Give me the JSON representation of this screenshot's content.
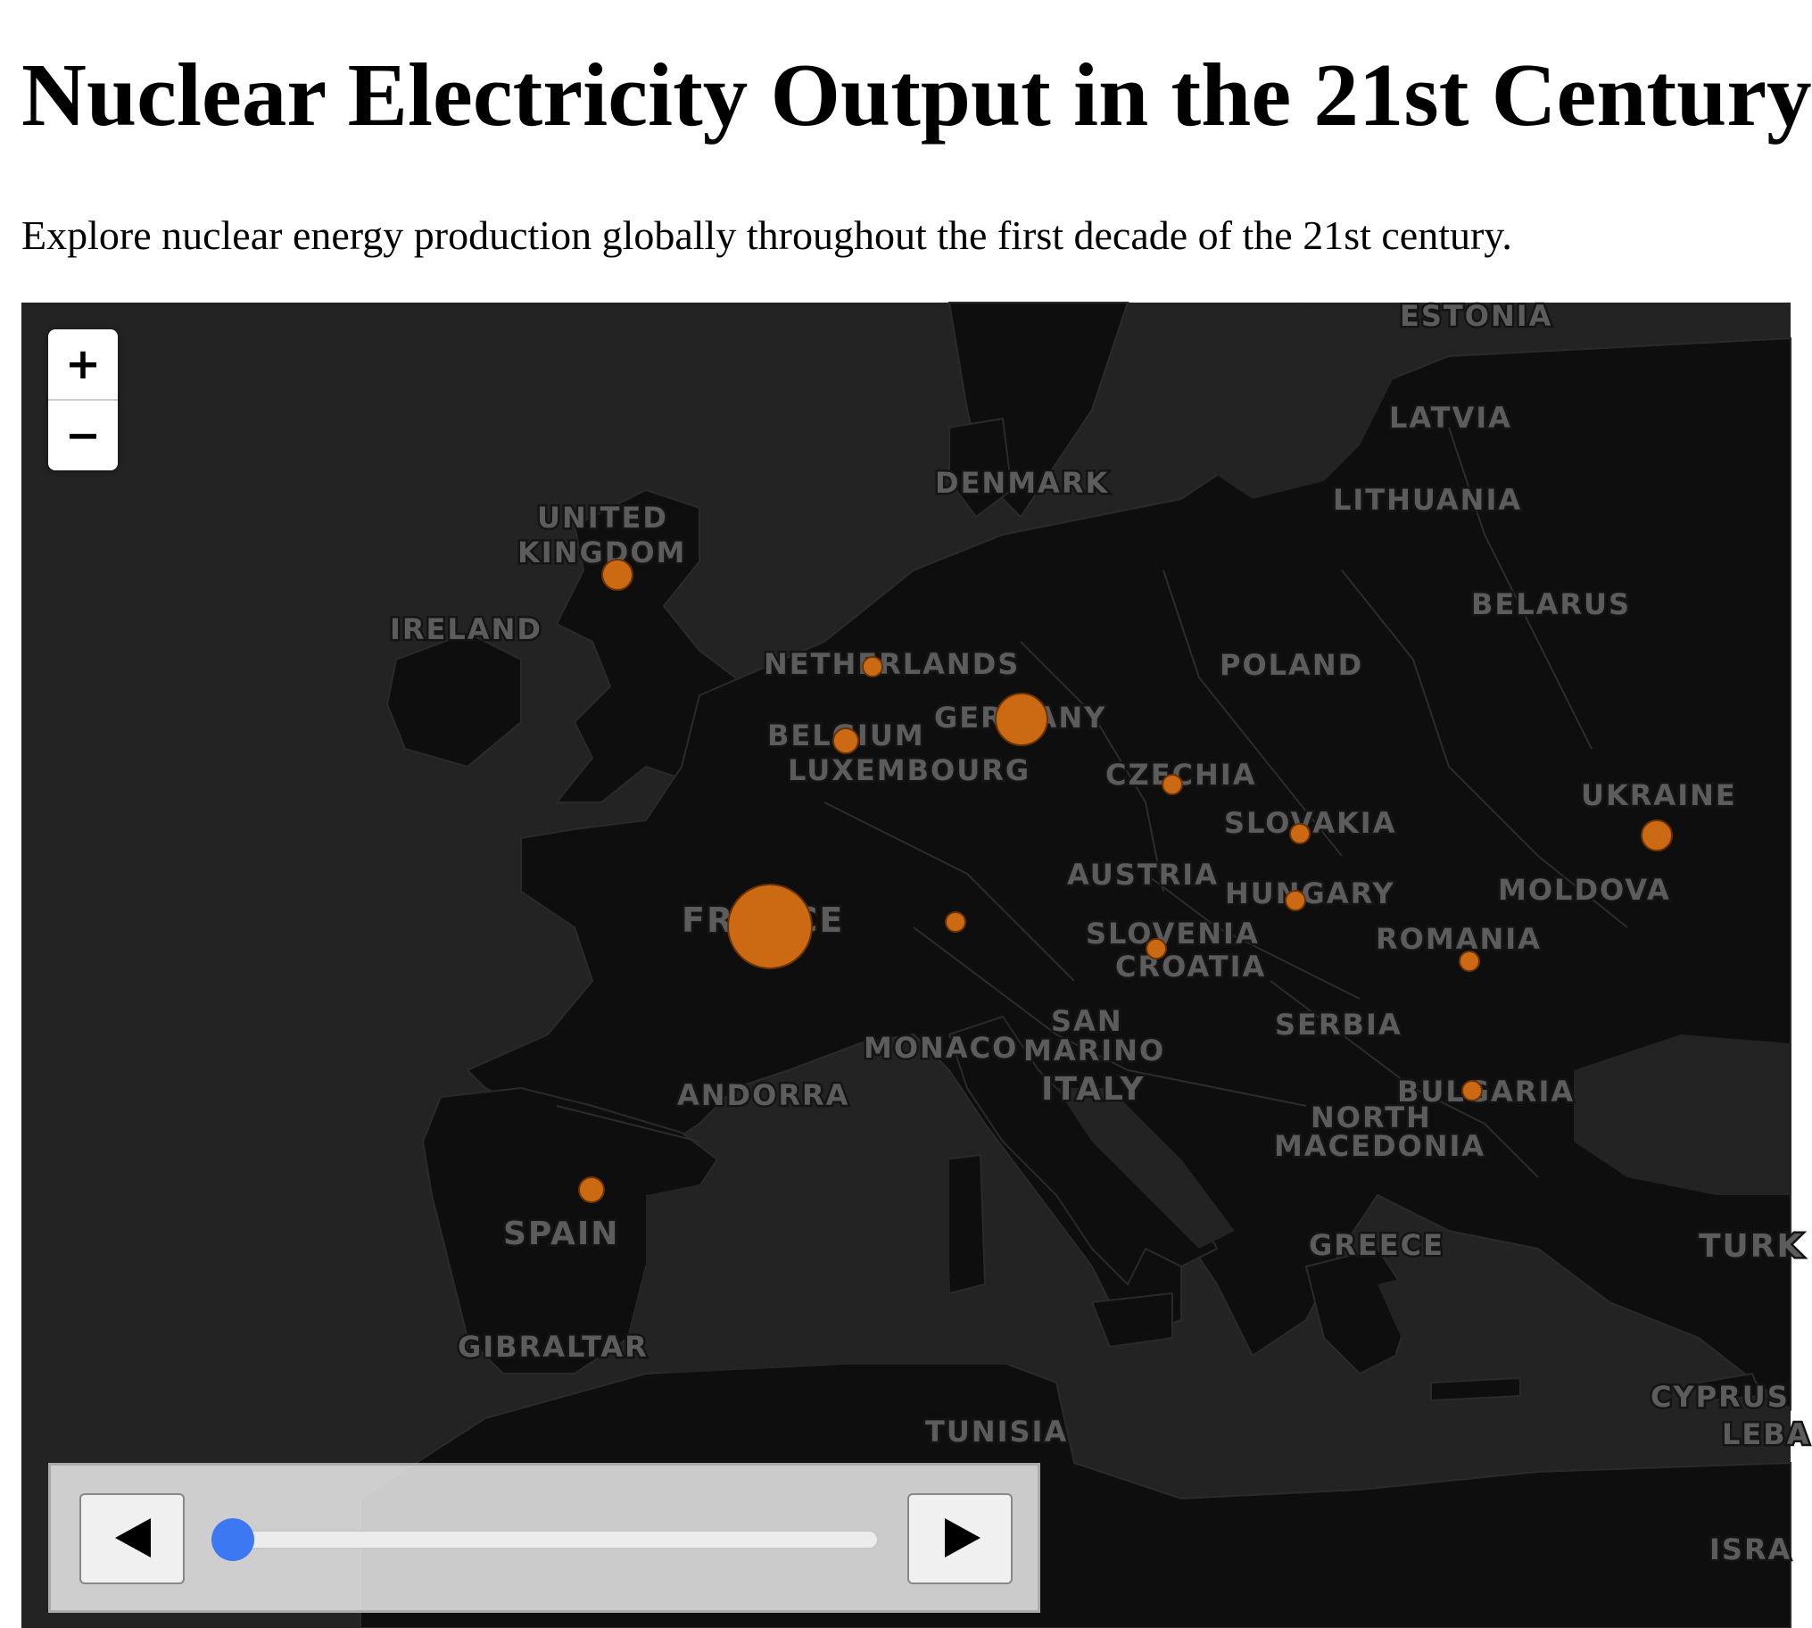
{
  "page": {
    "title": "Nuclear Electricity Output in the 21st Century",
    "subtitle": "Explore nuclear energy production globally throughout the first decade of the 21st century."
  },
  "map": {
    "zoom_in_label": "+",
    "zoom_out_label": "−",
    "labels": [
      {
        "name": "estonia",
        "text": "ESTONIA"
      },
      {
        "name": "latvia",
        "text": "LATVIA"
      },
      {
        "name": "lithuania",
        "text": "LITHUANIA"
      },
      {
        "name": "denmark",
        "text": "DENMARK"
      },
      {
        "name": "united",
        "text": "UNITED"
      },
      {
        "name": "kingdom",
        "text": "KINGDOM"
      },
      {
        "name": "ireland",
        "text": "IRELAND"
      },
      {
        "name": "belarus",
        "text": "BELARUS"
      },
      {
        "name": "netherlands",
        "text": "NETHERLANDS"
      },
      {
        "name": "poland",
        "text": "POLAND"
      },
      {
        "name": "germany",
        "text": "GERMANY"
      },
      {
        "name": "belgium",
        "text": "BELGIUM"
      },
      {
        "name": "luxembourg",
        "text": "LUXEMBOURG"
      },
      {
        "name": "czechia",
        "text": "CZECHIA"
      },
      {
        "name": "ukraine",
        "text": "UKRAINE"
      },
      {
        "name": "slovakia",
        "text": "SLOVAKIA"
      },
      {
        "name": "austria",
        "text": "AUSTRIA"
      },
      {
        "name": "hungary",
        "text": "HUNGARY"
      },
      {
        "name": "moldova",
        "text": "MOLDOVA"
      },
      {
        "name": "france",
        "text": "FRANCE"
      },
      {
        "name": "slovenia",
        "text": "SLOVENIA"
      },
      {
        "name": "romania",
        "text": "ROMANIA"
      },
      {
        "name": "croatia",
        "text": "CROATIA"
      },
      {
        "name": "serbia",
        "text": "SERBIA"
      },
      {
        "name": "san",
        "text": "SAN"
      },
      {
        "name": "monaco",
        "text": "MONACO"
      },
      {
        "name": "marino",
        "text": "MARINO"
      },
      {
        "name": "andorra",
        "text": "ANDORRA"
      },
      {
        "name": "italy",
        "text": "ITALY"
      },
      {
        "name": "bulgaria",
        "text": "BULGARIA"
      },
      {
        "name": "north",
        "text": "NORTH"
      },
      {
        "name": "macedonia",
        "text": "MACEDONIA"
      },
      {
        "name": "spain",
        "text": "SPAIN"
      },
      {
        "name": "greece",
        "text": "GREECE"
      },
      {
        "name": "turkey",
        "text": "TURK"
      },
      {
        "name": "gibraltar",
        "text": "GIBRALTAR"
      },
      {
        "name": "cyprus",
        "text": "CYPRUS"
      },
      {
        "name": "tunisia",
        "text": "TUNISIA"
      },
      {
        "name": "lebanon",
        "text": "LEBA"
      },
      {
        "name": "israel",
        "text": "ISRA"
      }
    ],
    "marker_color": "#cc6a14"
  },
  "controls": {
    "slider_value_fraction": 0.0
  }
}
